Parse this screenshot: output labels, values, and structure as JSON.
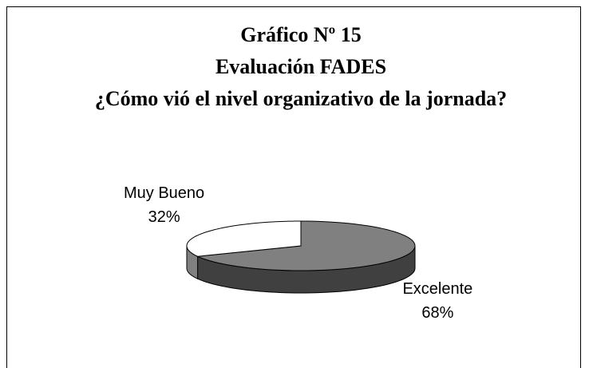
{
  "chart_data": {
    "type": "pie",
    "title": [
      "Gráfico Nº 15",
      "Evaluación FADES",
      "¿Cómo vió el nivel organizativo de la jornada?"
    ],
    "categories": [
      "Excelente",
      "Muy Bueno"
    ],
    "values": [
      68,
      32
    ],
    "value_labels": [
      "68%",
      "32%"
    ],
    "colors": [
      "#808080",
      "#ffffff"
    ]
  }
}
